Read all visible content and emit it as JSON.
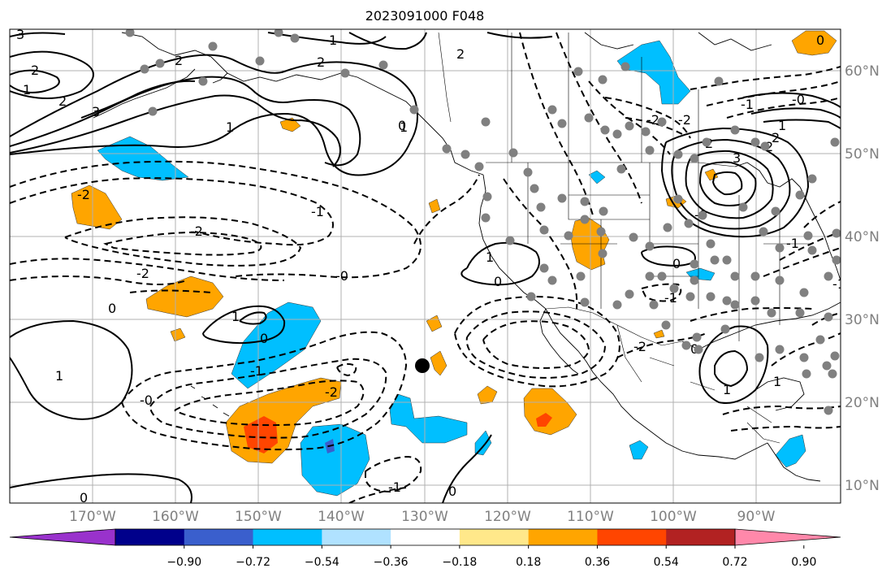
{
  "title": "2023091000 F048",
  "lon_labels": [
    "170°W",
    "160°W",
    "150°W",
    "140°W",
    "130°W",
    "120°W",
    "110°W",
    "100°W",
    "90°W"
  ],
  "lat_labels": [
    "60°N",
    "50°N",
    "40°N",
    "30°N",
    "20°N",
    "10°N"
  ],
  "colorbar": {
    "ticks": [
      "−0.90",
      "−0.72",
      "−0.54",
      "−0.36",
      "−0.18",
      "0.18",
      "0.36",
      "0.54",
      "0.72",
      "0.90"
    ],
    "colors": [
      "#9932cc",
      "#00008b",
      "#3a5fcd",
      "#00bfff",
      "#b0e2ff",
      "#ffffff",
      "#ffe88a",
      "#ffa500",
      "#ff4500",
      "#b22222",
      "#ff88aa"
    ]
  },
  "contour_labels": {
    "c1": "3",
    "c2": "2",
    "c3": "1",
    "c4": "2",
    "c5": "3",
    "c6": "2",
    "c7": "1",
    "c8": "2",
    "c9": "1",
    "c10": "1",
    "c11": "2",
    "c12": "-1",
    "c13": "-2",
    "c14": "-0",
    "c15": "-2",
    "c16": "-2",
    "c17": "0",
    "c18": "1",
    "c19": "0",
    "c20": "1",
    "c21": "-1",
    "c22": "-0",
    "c23": "-2",
    "c24": "-1",
    "c25": "0",
    "c26": "1",
    "c27": "0",
    "c28": "-2",
    "c29": "-1",
    "c30": "0",
    "c31": "-2",
    "c32": "-2",
    "c33": "2",
    "c34": "3",
    "c35": "2",
    "c36": "1",
    "c37": "-0",
    "c38": "-1",
    "c39": "0",
    "c40": "1",
    "c41": "-1",
    "c42": "0",
    "c43": "1",
    "c44": "-1",
    "c45": "2",
    "c46": "-0",
    "c47": "0",
    "c48": "0"
  },
  "stations_count_note": ""
}
